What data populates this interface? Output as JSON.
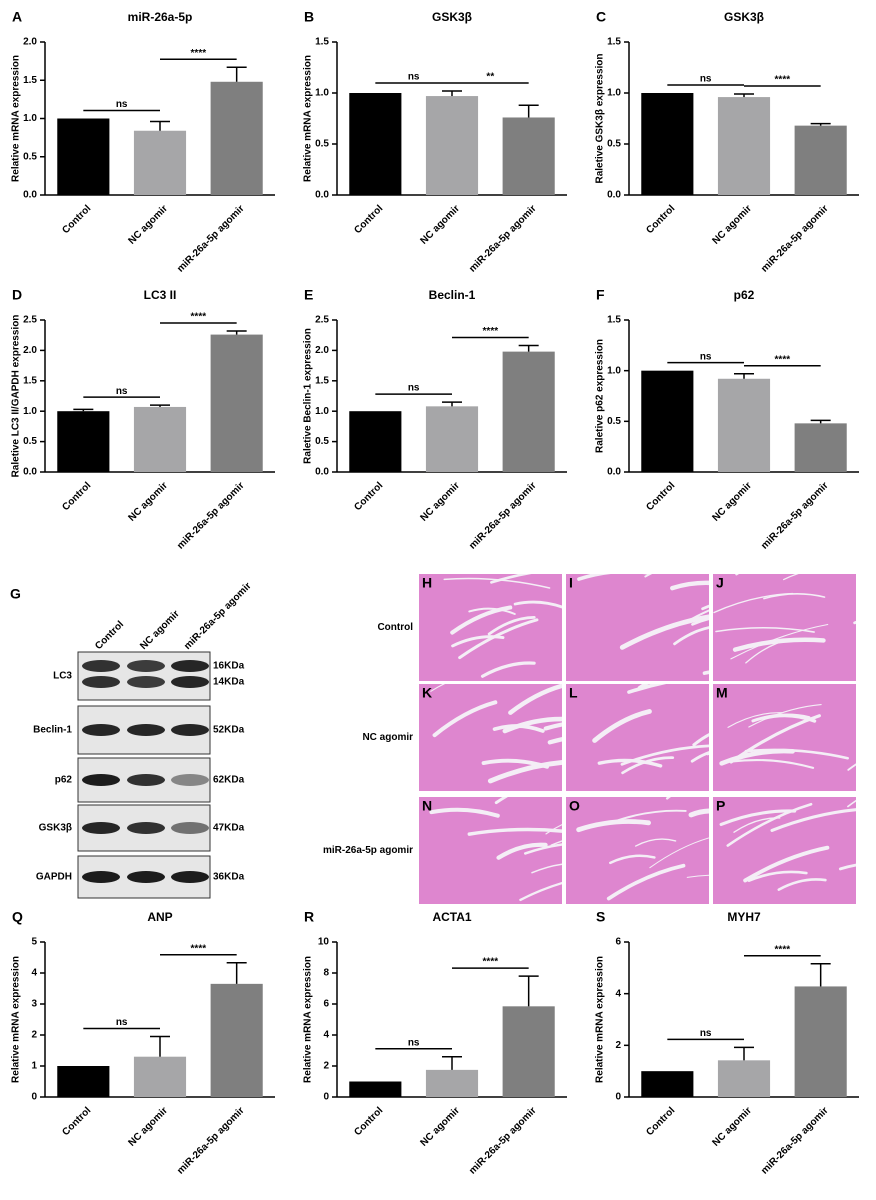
{
  "chart_data": [
    {
      "type": "bar",
      "panel": "A",
      "title": "miR-26a-5p",
      "y_label": "Relative mRNA expression",
      "categories": [
        "Control",
        "NC agomir",
        "miR-26a-5p agomir"
      ],
      "values": [
        1.0,
        0.84,
        1.48
      ],
      "errors": [
        0,
        0.12,
        0.19
      ],
      "colors": [
        "#000000",
        "#a6a6a8",
        "#7f7f7f"
      ],
      "ylim": [
        0,
        2
      ],
      "yticks": [
        {
          "value": 0,
          "label": "0.0"
        },
        0.5,
        {
          "value": 1,
          "label": "1.0"
        },
        1.5,
        {
          "value": 2,
          "label": "2.0"
        }
      ],
      "annotations": [
        "ns",
        "****"
      ]
    },
    {
      "type": "bar",
      "panel": "B",
      "title": "GSK3β",
      "y_label": "Relative mRNA expression",
      "categories": [
        "Control",
        "NC agomir",
        "miR-26a-5p agomir"
      ],
      "values": [
        1.0,
        0.97,
        0.76
      ],
      "errors": [
        0,
        0.05,
        0.12
      ],
      "colors": [
        "#000000",
        "#a6a6a8",
        "#7f7f7f"
      ],
      "ylim": [
        0,
        1.5
      ],
      "yticks": [
        {
          "value": 0,
          "label": "0.0"
        },
        0.5,
        {
          "value": 1,
          "label": "1.0"
        },
        1.5
      ],
      "annotations": [
        "ns",
        "**"
      ]
    },
    {
      "type": "bar",
      "panel": "C",
      "title": "GSK3β",
      "y_label": "Raletive GSK3β expression",
      "categories": [
        "Control",
        "NC agomir",
        "miR-26a-5p agomir"
      ],
      "values": [
        1.0,
        0.96,
        0.68
      ],
      "errors": [
        0,
        0.03,
        0.02
      ],
      "colors": [
        "#000000",
        "#a6a6a8",
        "#7f7f7f"
      ],
      "ylim": [
        0,
        1.5
      ],
      "yticks": [
        {
          "value": 0,
          "label": "0.0"
        },
        0.5,
        {
          "value": 1,
          "label": "1.0"
        },
        1.5
      ],
      "annotations": [
        "ns",
        "****"
      ]
    },
    {
      "type": "bar",
      "panel": "D",
      "title": "LC3 II",
      "y_label": "Raletive LC3 II/GAPDH expression",
      "categories": [
        "Control",
        "NC agomir",
        "miR-26a-5p agomir"
      ],
      "values": [
        1.0,
        1.07,
        2.26
      ],
      "errors": [
        0.03,
        0.03,
        0.06
      ],
      "colors": [
        "#000000",
        "#a6a6a8",
        "#7f7f7f"
      ],
      "ylim": [
        0,
        2.5
      ],
      "yticks": [
        {
          "value": 0,
          "label": "0.0"
        },
        0.5,
        {
          "value": 1,
          "label": "1.0"
        },
        1.5,
        {
          "value": 2,
          "label": "2.0"
        },
        2.5
      ],
      "annotations": [
        "ns",
        "****"
      ]
    },
    {
      "type": "bar",
      "panel": "E",
      "title": "Beclin-1",
      "y_label": "Raletive Beclin-1 expression",
      "categories": [
        "Control",
        "NC agomir",
        "miR-26a-5p agomir"
      ],
      "values": [
        1.0,
        1.08,
        1.98
      ],
      "errors": [
        0,
        0.07,
        0.1
      ],
      "colors": [
        "#000000",
        "#a6a6a8",
        "#7f7f7f"
      ],
      "ylim": [
        0,
        2.5
      ],
      "yticks": [
        {
          "value": 0,
          "label": "0.0"
        },
        0.5,
        {
          "value": 1,
          "label": "1.0"
        },
        1.5,
        {
          "value": 2,
          "label": "2.0"
        },
        2.5
      ],
      "annotations": [
        "ns",
        "****"
      ]
    },
    {
      "type": "bar",
      "panel": "F",
      "title": "p62",
      "y_label": "Raletive p62 expression",
      "categories": [
        "Control",
        "NC agomir",
        "miR-26a-5p agomir"
      ],
      "values": [
        1.0,
        0.92,
        0.48
      ],
      "errors": [
        0,
        0.05,
        0.03
      ],
      "colors": [
        "#000000",
        "#a6a6a8",
        "#7f7f7f"
      ],
      "ylim": [
        0,
        1.5
      ],
      "yticks": [
        {
          "value": 0,
          "label": "0.0"
        },
        0.5,
        {
          "value": 1,
          "label": "1.0"
        },
        1.5
      ],
      "annotations": [
        "ns",
        "****"
      ]
    },
    {
      "type": "bar",
      "panel": "Q",
      "title": "ANP",
      "y_label": "Relative mRNA expression",
      "categories": [
        "Control",
        "NC agomir",
        "miR-26a-5p agomir"
      ],
      "values": [
        1.0,
        1.3,
        3.65
      ],
      "errors": [
        0,
        0.65,
        0.68
      ],
      "colors": [
        "#000000",
        "#a6a6a8",
        "#7f7f7f"
      ],
      "ylim": [
        0,
        5
      ],
      "yticks": [
        0,
        1,
        2,
        3,
        4,
        5
      ],
      "annotations": [
        "ns",
        "****"
      ]
    },
    {
      "type": "bar",
      "panel": "R",
      "title": "ACTA1",
      "y_label": "Relative mRNA expression",
      "categories": [
        "Control",
        "NC agomir",
        "miR-26a-5p agomir"
      ],
      "values": [
        1.0,
        1.75,
        5.85
      ],
      "errors": [
        0,
        0.85,
        1.95
      ],
      "colors": [
        "#000000",
        "#a6a6a8",
        "#7f7f7f"
      ],
      "ylim": [
        0,
        10
      ],
      "yticks": [
        0,
        2,
        4,
        6,
        8,
        10
      ],
      "annotations": [
        "ns",
        "****"
      ]
    },
    {
      "type": "bar",
      "panel": "S",
      "title": "MYH7",
      "y_label": "Relative mRNA expression",
      "categories": [
        "Control",
        "NC agomir",
        "miR-26a-5p agomir"
      ],
      "values": [
        1.0,
        1.42,
        4.28
      ],
      "errors": [
        0,
        0.5,
        0.88
      ],
      "colors": [
        "#000000",
        "#a6a6a8",
        "#7f7f7f"
      ],
      "ylim": [
        0,
        6
      ],
      "yticks": [
        0,
        2,
        4,
        6
      ],
      "annotations": [
        "ns",
        "****"
      ]
    }
  ],
  "western_blot": {
    "panel": "G",
    "lanes": [
      "Control",
      "NC agomir",
      "miR-26a-5p agomir"
    ],
    "rows": [
      {
        "protein": "LC3",
        "sizes": [
          "16KDa",
          "14KDa"
        ]
      },
      {
        "protein": "Beclin-1",
        "sizes": [
          "52KDa"
        ]
      },
      {
        "protein": "p62",
        "sizes": [
          "62KDa"
        ]
      },
      {
        "protein": "GSK3β",
        "sizes": [
          "47KDa"
        ]
      },
      {
        "protein": "GAPDH",
        "sizes": [
          "36KDa"
        ]
      }
    ]
  },
  "histology": {
    "row_labels": [
      "Control",
      "NC agomir",
      "miR-26a-5p agomir"
    ],
    "panels": [
      "H",
      "I",
      "J",
      "K",
      "L",
      "M",
      "N",
      "O",
      "P"
    ]
  }
}
